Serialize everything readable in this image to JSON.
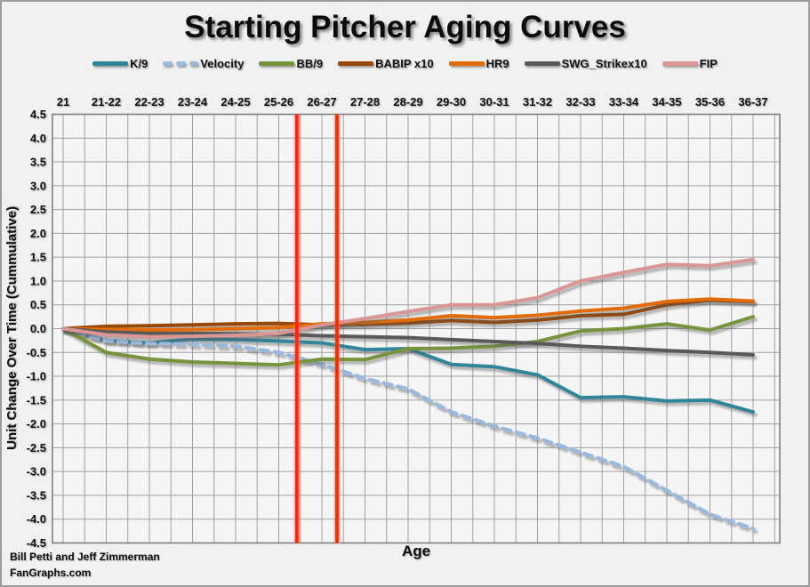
{
  "title": "Starting Pitcher Aging Curves",
  "footer": {
    "line1": "Bill Petti and Jeff Zimmerman",
    "line2": "FanGraphs.com"
  },
  "chart_data": {
    "type": "line",
    "title": "Starting Pitcher Aging Curves",
    "xlabel": "Age",
    "ylabel": "Unit Change Over Time (Cummulative)",
    "categories": [
      "21",
      "21-22",
      "22-23",
      "23-24",
      "24-25",
      "25-26",
      "26-27",
      "27-28",
      "28-29",
      "29-30",
      "30-31",
      "31-32",
      "32-33",
      "33-34",
      "34-35",
      "35-36",
      "36-37"
    ],
    "ylim": [
      -4.5,
      4.5
    ],
    "ytick_step": 0.5,
    "ytick_labels": [
      "4.5",
      "4.0",
      "3.5",
      "3.0",
      "2.5",
      "2.0",
      "1.5",
      "1.0",
      "0.5",
      "0.0",
      "-0.5",
      "-1.0",
      "-1.5",
      "-2.0",
      "-2.5",
      "-3.0",
      "-3.5",
      "-4.0",
      "-4.5"
    ],
    "grid": true,
    "legend_position": "top",
    "series": [
      {
        "name": "K/9",
        "color": "#31859B",
        "dash": "solid",
        "values": [
          0,
          -0.25,
          -0.3,
          -0.22,
          -0.23,
          -0.26,
          -0.3,
          -0.44,
          -0.42,
          -0.75,
          -0.8,
          -0.97,
          -1.45,
          -1.43,
          -1.52,
          -1.5,
          -1.75
        ]
      },
      {
        "name": "Velocity",
        "color": "#9BB9DC",
        "dash": "dashed",
        "values": [
          0,
          -0.25,
          -0.31,
          -0.33,
          -0.37,
          -0.5,
          -0.75,
          -1.05,
          -1.27,
          -1.75,
          -2.05,
          -2.3,
          -2.6,
          -2.9,
          -3.4,
          -3.9,
          -4.2
        ]
      },
      {
        "name": "BB/9",
        "color": "#77933C",
        "dash": "solid",
        "values": [
          0,
          -0.5,
          -0.64,
          -0.7,
          -0.73,
          -0.76,
          -0.64,
          -0.65,
          -0.42,
          -0.41,
          -0.37,
          -0.27,
          -0.05,
          0.0,
          0.1,
          -0.03,
          0.25
        ]
      },
      {
        "name": "BABIP x10",
        "color": "#974706",
        "dash": "solid",
        "values": [
          0,
          0.05,
          0.06,
          0.08,
          0.1,
          0.11,
          0.08,
          0.09,
          0.12,
          0.17,
          0.13,
          0.18,
          0.27,
          0.3,
          0.5,
          0.6,
          0.57
        ]
      },
      {
        "name": "HR9",
        "color": "#E36C0A",
        "dash": "solid",
        "values": [
          0,
          -0.02,
          -0.03,
          -0.02,
          0.0,
          0.02,
          0.1,
          0.13,
          0.18,
          0.27,
          0.23,
          0.28,
          0.37,
          0.43,
          0.57,
          0.62,
          0.58
        ]
      },
      {
        "name": "SWG_Strikex10",
        "color": "#595959",
        "dash": "solid",
        "values": [
          0,
          -0.07,
          -0.1,
          -0.1,
          -0.11,
          -0.12,
          -0.15,
          -0.17,
          -0.19,
          -0.23,
          -0.27,
          -0.31,
          -0.37,
          -0.41,
          -0.46,
          -0.5,
          -0.55
        ]
      },
      {
        "name": "FIP",
        "color": "#D99694",
        "dash": "solid",
        "values": [
          0,
          -0.13,
          -0.17,
          -0.16,
          -0.14,
          -0.1,
          0.08,
          0.21,
          0.36,
          0.5,
          0.5,
          0.65,
          1.0,
          1.18,
          1.35,
          1.32,
          1.45
        ]
      }
    ],
    "annotations": {
      "vlines": [
        {
          "x_index": 5.42,
          "color": "#FF2600",
          "label": "peak window start (25-26)"
        },
        {
          "x_index": 6.35,
          "color": "#FF2600",
          "label": "peak window end (26-27)"
        }
      ]
    }
  }
}
